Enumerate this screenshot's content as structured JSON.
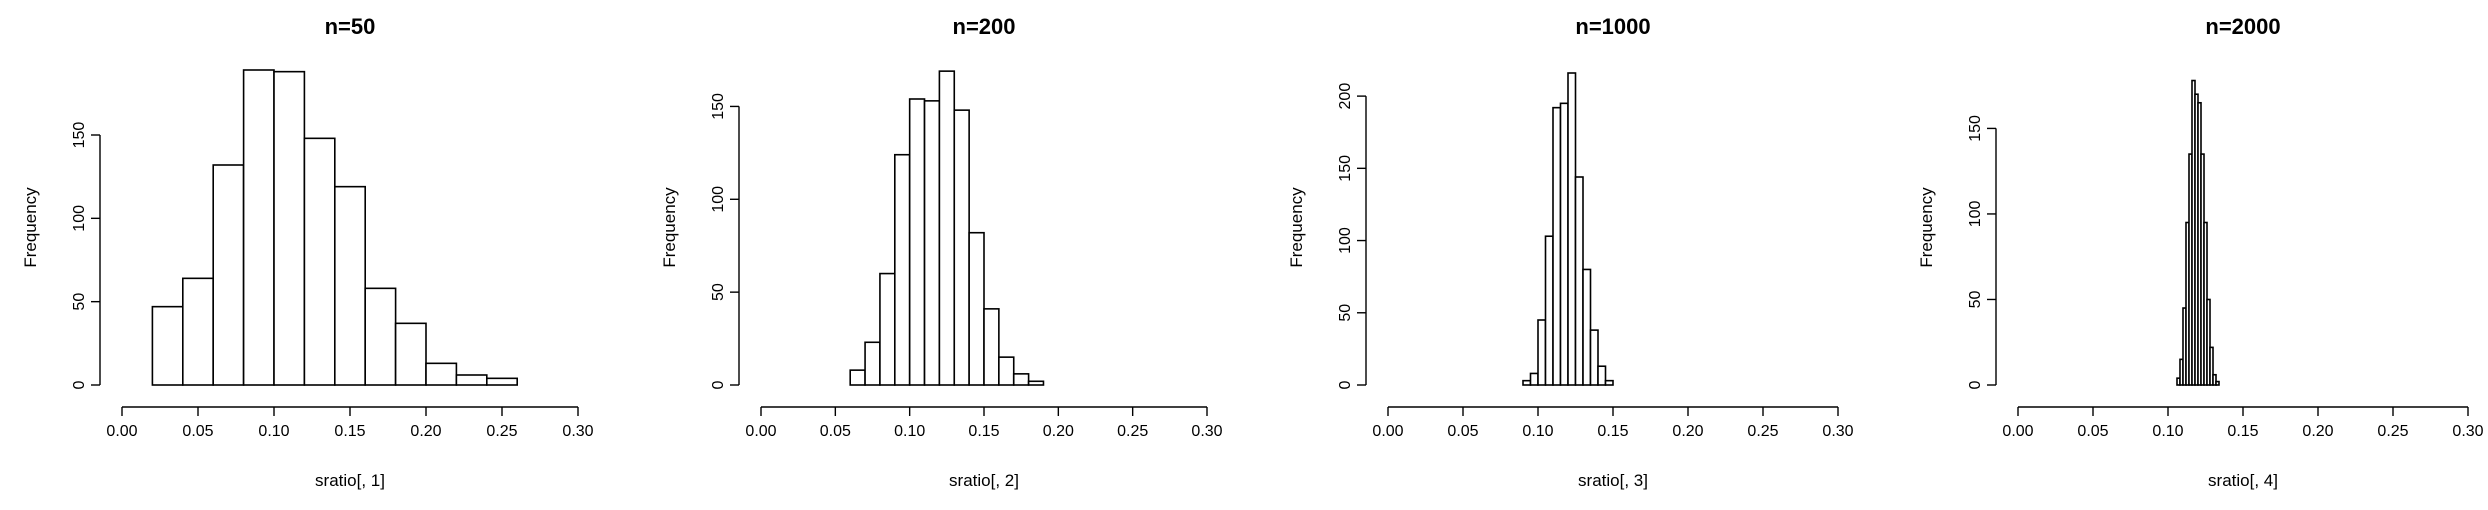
{
  "chart_data": [
    {
      "type": "bar",
      "subtype": "histogram",
      "title": "n=50",
      "xlabel": "sratio[, 1]",
      "ylabel": "Frequency",
      "xlim": [
        0.0,
        0.3
      ],
      "xticks": [
        "0.00",
        "0.05",
        "0.10",
        "0.15",
        "0.20",
        "0.25",
        "0.30"
      ],
      "ylim": [
        0,
        195
      ],
      "yticks": [
        "0",
        "50",
        "100",
        "150"
      ],
      "bin_width": 0.02,
      "bin_start": 0.02,
      "values": [
        47,
        64,
        132,
        189,
        188,
        148,
        119,
        58,
        37,
        13,
        6,
        4
      ],
      "grid": false,
      "legend": "none"
    },
    {
      "type": "bar",
      "subtype": "histogram",
      "title": "n=200",
      "xlabel": "sratio[, 2]",
      "ylabel": "Frequency",
      "xlim": [
        0.0,
        0.3
      ],
      "xticks": [
        "0.00",
        "0.05",
        "0.10",
        "0.15",
        "0.20",
        "0.25",
        "0.30"
      ],
      "ylim": [
        0,
        175
      ],
      "yticks": [
        "0",
        "50",
        "100",
        "150"
      ],
      "bin_width": 0.01,
      "bin_start": 0.06,
      "values": [
        8,
        23,
        60,
        124,
        154,
        153,
        169,
        148,
        82,
        41,
        15,
        6,
        2
      ],
      "grid": false,
      "legend": "none"
    },
    {
      "type": "bar",
      "subtype": "histogram",
      "title": "n=1000",
      "xlabel": "sratio[, 3]",
      "ylabel": "Frequency",
      "xlim": [
        0.0,
        0.3
      ],
      "xticks": [
        "0.00",
        "0.05",
        "0.10",
        "0.15",
        "0.20",
        "0.25",
        "0.30"
      ],
      "ylim": [
        0,
        225
      ],
      "yticks": [
        "0",
        "50",
        "100",
        "150",
        "200"
      ],
      "bin_width": 0.005,
      "bin_start": 0.09,
      "values": [
        3,
        8,
        45,
        103,
        192,
        195,
        216,
        144,
        80,
        38,
        13,
        3
      ],
      "grid": false,
      "legend": "none"
    },
    {
      "type": "bar",
      "subtype": "histogram",
      "title": "n=2000",
      "xlabel": "sratio[, 4]",
      "ylabel": "Frequency",
      "xlim": [
        0.0,
        0.3
      ],
      "xticks": [
        "0.00",
        "0.05",
        "0.10",
        "0.15",
        "0.20",
        "0.25",
        "0.30"
      ],
      "ylim": [
        0,
        190
      ],
      "yticks": [
        "0",
        "50",
        "100",
        "150"
      ],
      "bin_width": 0.002,
      "bin_start": 0.106,
      "values": [
        4,
        15,
        45,
        95,
        135,
        178,
        170,
        165,
        135,
        95,
        50,
        22,
        6,
        2
      ],
      "grid": false,
      "legend": "none"
    }
  ]
}
